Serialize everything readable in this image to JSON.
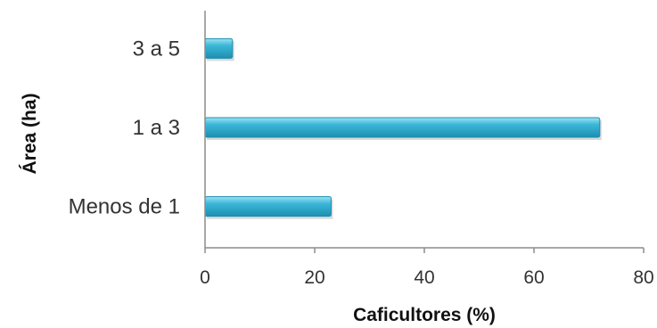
{
  "chart_data": {
    "type": "bar",
    "orientation": "horizontal",
    "categories": [
      "Menos de 1",
      "1 a 3",
      "3 a 5"
    ],
    "values": [
      23,
      72,
      5
    ],
    "xlabel": "Caficultores (%)",
    "ylabel": "Área (ha)",
    "xlim": [
      0,
      80
    ],
    "xticks": [
      0,
      20,
      40,
      60,
      80
    ],
    "grid": false,
    "legend": "none",
    "colors": {
      "bar_dark": "#1d8fb0",
      "bar_mid": "#3bb7d8",
      "bar_light": "#9fe3f3",
      "axis": "#8c8c8c"
    }
  }
}
